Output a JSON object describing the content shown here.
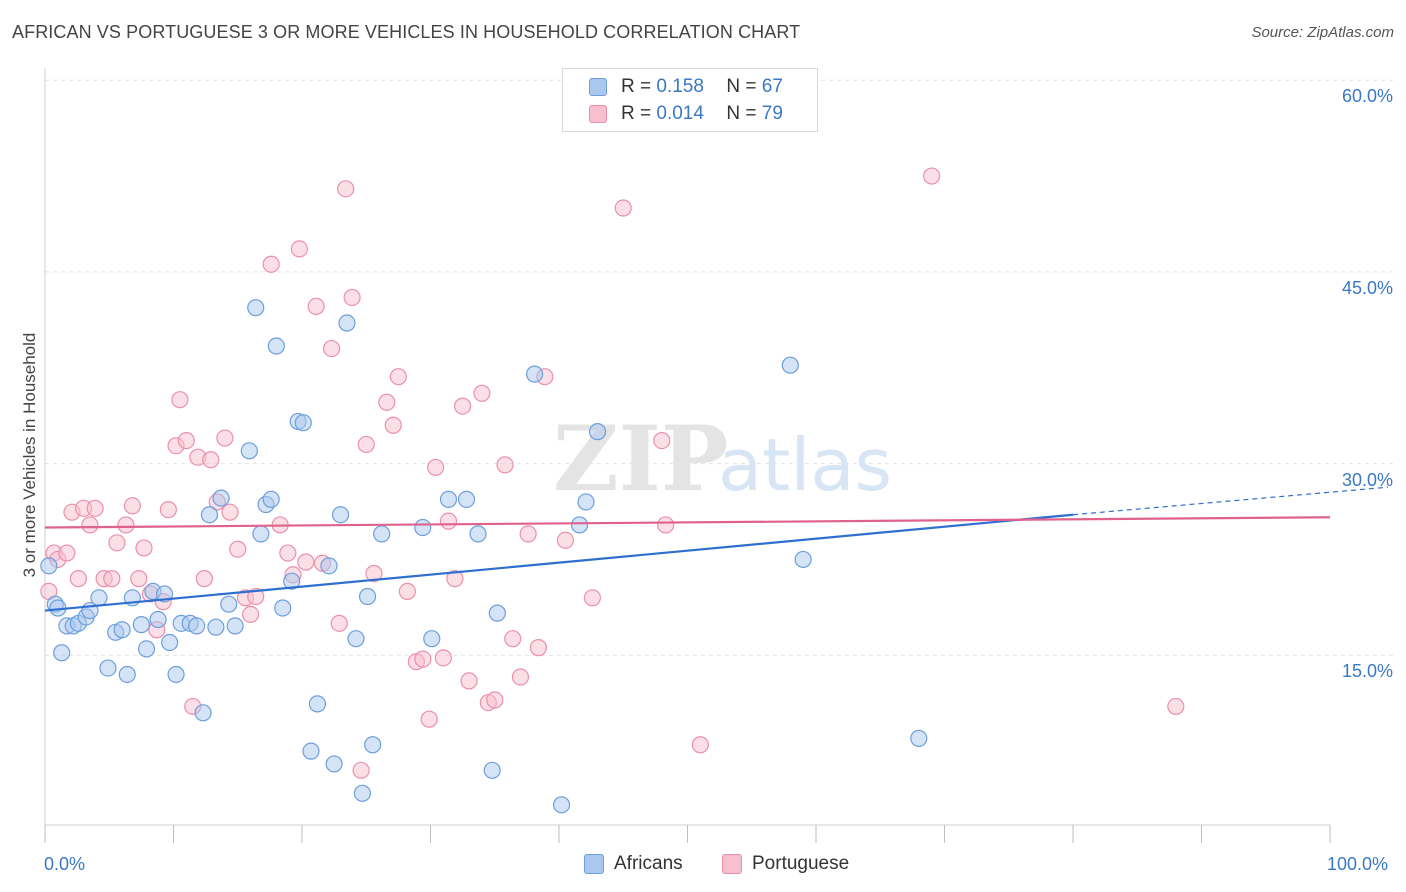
{
  "title": "AFRICAN VS PORTUGUESE 3 OR MORE VEHICLES IN HOUSEHOLD CORRELATION CHART",
  "source": "Source: ZipAtlas.com",
  "watermark": {
    "zip": "ZIP",
    "atlas": "atlas"
  },
  "legend": {
    "africans": {
      "r_label": "R =",
      "r_value": "0.158",
      "n_label": "N =",
      "n_value": "67"
    },
    "portuguese": {
      "r_label": "R =",
      "r_value": "0.014",
      "n_label": "N =",
      "n_value": "79"
    }
  },
  "bottom_legend": {
    "africans": "Africans",
    "portuguese": "Portuguese"
  },
  "colors": {
    "africans_fill": "#aac8ee",
    "africans_stroke": "#6d9fdc",
    "africans_line": "#2f6fcf",
    "portuguese_fill": "#f7bfd0",
    "portuguese_stroke": "#ec8fac",
    "portuguese_line": "#e0628c",
    "tick_text": "#3b78c4"
  },
  "chart_data": {
    "type": "scatter",
    "title": "AFRICAN VS PORTUGUESE 3 OR MORE VEHICLES IN HOUSEHOLD CORRELATION CHART",
    "xlabel": "",
    "ylabel": "3 or more Vehicles in Household",
    "xlim": [
      0,
      100
    ],
    "ylim": [
      0,
      60
    ],
    "x_tick_labels": [
      "0.0%",
      "100.0%"
    ],
    "y_ticks": [
      15,
      30,
      45,
      60
    ],
    "y_tick_labels": [
      "15.0%",
      "30.0%",
      "45.0%",
      "60.0%"
    ],
    "grid": "horizontal dashed",
    "legend_position": "top-center",
    "series": [
      {
        "name": "Africans",
        "r": 0.158,
        "n": 67,
        "trend": {
          "x": [
            0,
            80
          ],
          "y": [
            18.5,
            26.0
          ],
          "dashed_to": [
            100,
            28.0
          ]
        },
        "points": [
          [
            0.3,
            22.0
          ],
          [
            0.8,
            19.0
          ],
          [
            1.3,
            15.2
          ],
          [
            1.7,
            17.3
          ],
          [
            2.2,
            17.3
          ],
          [
            2.6,
            17.5
          ],
          [
            3.2,
            18.0
          ],
          [
            3.5,
            18.5
          ],
          [
            4.2,
            19.5
          ],
          [
            4.9,
            14.0
          ],
          [
            5.5,
            16.8
          ],
          [
            6.0,
            17.0
          ],
          [
            6.4,
            13.5
          ],
          [
            6.8,
            19.5
          ],
          [
            7.5,
            17.4
          ],
          [
            7.9,
            15.5
          ],
          [
            8.4,
            20.0
          ],
          [
            8.8,
            17.8
          ],
          [
            9.3,
            19.8
          ],
          [
            9.7,
            16.0
          ],
          [
            10.2,
            13.5
          ],
          [
            10.6,
            17.5
          ],
          [
            11.3,
            17.5
          ],
          [
            11.8,
            17.3
          ],
          [
            12.3,
            10.5
          ],
          [
            12.8,
            26.0
          ],
          [
            13.3,
            17.2
          ],
          [
            13.7,
            27.3
          ],
          [
            14.3,
            19.0
          ],
          [
            14.8,
            17.3
          ],
          [
            15.9,
            31.0
          ],
          [
            16.4,
            42.2
          ],
          [
            16.8,
            24.5
          ],
          [
            17.2,
            26.8
          ],
          [
            17.6,
            27.2
          ],
          [
            18.0,
            39.2
          ],
          [
            18.5,
            18.7
          ],
          [
            19.2,
            20.8
          ],
          [
            19.7,
            33.3
          ],
          [
            20.1,
            33.2
          ],
          [
            20.7,
            7.5
          ],
          [
            21.2,
            11.2
          ],
          [
            22.1,
            22.0
          ],
          [
            22.5,
            6.5
          ],
          [
            23.0,
            26.0
          ],
          [
            23.5,
            41.0
          ],
          [
            24.2,
            16.3
          ],
          [
            24.7,
            4.2
          ],
          [
            25.1,
            19.6
          ],
          [
            25.5,
            8.0
          ],
          [
            26.2,
            24.5
          ],
          [
            29.4,
            25.0
          ],
          [
            30.1,
            16.3
          ],
          [
            31.4,
            27.2
          ],
          [
            32.8,
            27.2
          ],
          [
            33.7,
            24.5
          ],
          [
            34.8,
            6.0
          ],
          [
            35.2,
            18.3
          ],
          [
            38.1,
            37.0
          ],
          [
            40.2,
            3.3
          ],
          [
            41.6,
            25.2
          ],
          [
            42.1,
            27.0
          ],
          [
            43.0,
            32.5
          ],
          [
            58.0,
            37.7
          ],
          [
            59.0,
            22.5
          ],
          [
            68.0,
            8.5
          ],
          [
            1.0,
            18.7
          ]
        ]
      },
      {
        "name": "Portuguese",
        "r": 0.014,
        "n": 79,
        "trend": {
          "x": [
            0,
            100
          ],
          "y": [
            25.0,
            25.8
          ]
        },
        "points": [
          [
            0.3,
            20.0
          ],
          [
            0.7,
            23.0
          ],
          [
            1.0,
            22.5
          ],
          [
            1.7,
            23.0
          ],
          [
            2.1,
            26.2
          ],
          [
            2.6,
            21.0
          ],
          [
            3.0,
            26.5
          ],
          [
            3.5,
            25.2
          ],
          [
            3.9,
            26.5
          ],
          [
            4.6,
            21.0
          ],
          [
            5.2,
            21.0
          ],
          [
            5.6,
            23.8
          ],
          [
            6.3,
            25.2
          ],
          [
            6.8,
            26.7
          ],
          [
            7.3,
            21.0
          ],
          [
            7.7,
            23.4
          ],
          [
            8.2,
            19.8
          ],
          [
            8.7,
            17.0
          ],
          [
            9.2,
            19.2
          ],
          [
            9.6,
            26.4
          ],
          [
            10.2,
            31.4
          ],
          [
            10.5,
            35.0
          ],
          [
            11.0,
            31.8
          ],
          [
            11.5,
            11.0
          ],
          [
            11.9,
            30.5
          ],
          [
            12.4,
            21.0
          ],
          [
            12.9,
            30.3
          ],
          [
            13.4,
            27.0
          ],
          [
            14.0,
            32.0
          ],
          [
            14.4,
            26.2
          ],
          [
            15.0,
            23.3
          ],
          [
            15.6,
            19.5
          ],
          [
            16.0,
            18.2
          ],
          [
            16.4,
            19.6
          ],
          [
            17.6,
            45.6
          ],
          [
            18.3,
            25.2
          ],
          [
            18.9,
            23.0
          ],
          [
            19.3,
            21.3
          ],
          [
            19.8,
            46.8
          ],
          [
            20.3,
            22.3
          ],
          [
            21.1,
            42.3
          ],
          [
            21.6,
            22.2
          ],
          [
            22.3,
            39.0
          ],
          [
            22.9,
            17.5
          ],
          [
            23.4,
            51.5
          ],
          [
            23.9,
            43.0
          ],
          [
            24.6,
            6.0
          ],
          [
            25.0,
            31.5
          ],
          [
            25.6,
            21.4
          ],
          [
            26.6,
            34.8
          ],
          [
            27.1,
            33.0
          ],
          [
            27.5,
            36.8
          ],
          [
            28.2,
            20.0
          ],
          [
            28.9,
            14.5
          ],
          [
            29.4,
            14.7
          ],
          [
            29.9,
            10.0
          ],
          [
            30.4,
            29.7
          ],
          [
            31.0,
            14.8
          ],
          [
            31.4,
            25.5
          ],
          [
            31.9,
            21.0
          ],
          [
            32.5,
            34.5
          ],
          [
            33.0,
            13.0
          ],
          [
            34.0,
            35.5
          ],
          [
            34.5,
            11.3
          ],
          [
            35.0,
            11.5
          ],
          [
            35.8,
            29.9
          ],
          [
            36.4,
            16.3
          ],
          [
            37.0,
            13.3
          ],
          [
            37.6,
            24.5
          ],
          [
            38.4,
            15.6
          ],
          [
            38.9,
            36.8
          ],
          [
            40.5,
            24.0
          ],
          [
            42.6,
            19.5
          ],
          [
            45.0,
            50.0
          ],
          [
            48.0,
            31.8
          ],
          [
            48.3,
            25.2
          ],
          [
            51.0,
            8.0
          ],
          [
            69.0,
            52.5
          ],
          [
            88.0,
            11.0
          ]
        ]
      }
    ]
  }
}
